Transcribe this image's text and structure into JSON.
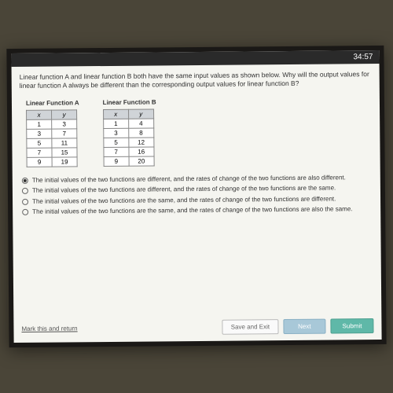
{
  "timer": "34:57",
  "question": {
    "line1": "Linear function A and linear function B both have the same input values as shown below. Why will the output values for",
    "line2": "linear function A always be different than the corresponding output values for linear function B?"
  },
  "tableA": {
    "title": "Linear Function A",
    "col_x": "x",
    "col_y": "y",
    "rows": [
      {
        "x": "1",
        "y": "3"
      },
      {
        "x": "3",
        "y": "7"
      },
      {
        "x": "5",
        "y": "11"
      },
      {
        "x": "7",
        "y": "15"
      },
      {
        "x": "9",
        "y": "19"
      }
    ]
  },
  "tableB": {
    "title": "Linear Function B",
    "col_x": "x",
    "col_y": "y",
    "rows": [
      {
        "x": "1",
        "y": "4"
      },
      {
        "x": "3",
        "y": "8"
      },
      {
        "x": "5",
        "y": "12"
      },
      {
        "x": "7",
        "y": "16"
      },
      {
        "x": "9",
        "y": "20"
      }
    ]
  },
  "options": [
    "The initial values of the two functions are different, and the rates of change of the two functions are also different.",
    "The initial values of the two functions are different, and the rates of change of the two functions are the same.",
    "The initial values of the two functions are the same, and the rates of change of the two functions are different.",
    "The initial values of the two functions are the same, and the rates of change of the two functions are also the same."
  ],
  "selected": 0,
  "footer": {
    "mark": "Mark this and return",
    "save": "Save and Exit",
    "next": "Next",
    "submit": "Submit"
  },
  "colors": {
    "header_bg": "#d0d4d8",
    "btn_next": "#a8c8d8",
    "btn_submit": "#5fb8a8"
  }
}
